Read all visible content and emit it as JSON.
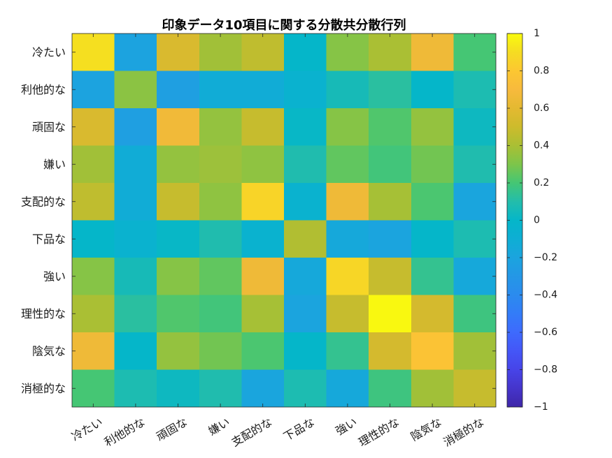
{
  "chart_data": {
    "type": "heatmap",
    "title": "印象データ10項目に関する分散共分散行列",
    "row_labels": [
      "冷たい",
      "利他的な",
      "頑固な",
      "嫌い",
      "支配的な",
      "下品な",
      "強い",
      "理性的な",
      "陰気な",
      "消極的な"
    ],
    "col_labels": [
      "冷たい",
      "利他的な",
      "頑固な",
      "嫌い",
      "支配的な",
      "下品な",
      "強い",
      "理性的な",
      "陰気な",
      "消極的な"
    ],
    "values": [
      [
        0.91,
        -0.21,
        0.55,
        0.38,
        0.46,
        0.0,
        0.32,
        0.4,
        0.66,
        0.2
      ],
      [
        -0.21,
        0.33,
        -0.24,
        -0.12,
        -0.12,
        -0.05,
        0.06,
        0.12,
        0.0,
        0.08
      ],
      [
        0.55,
        -0.24,
        0.67,
        0.35,
        0.48,
        0.01,
        0.32,
        0.22,
        0.35,
        0.03
      ],
      [
        0.38,
        -0.12,
        0.35,
        0.37,
        0.34,
        0.09,
        0.25,
        0.19,
        0.28,
        0.09
      ],
      [
        0.46,
        -0.12,
        0.48,
        0.34,
        0.86,
        -0.05,
        0.66,
        0.39,
        0.21,
        -0.19
      ],
      [
        0.0,
        -0.05,
        0.01,
        0.09,
        -0.05,
        0.42,
        -0.16,
        -0.2,
        0.0,
        0.08
      ],
      [
        0.32,
        0.06,
        0.32,
        0.25,
        0.66,
        -0.16,
        0.87,
        0.48,
        0.15,
        -0.16
      ],
      [
        0.4,
        0.12,
        0.22,
        0.19,
        0.39,
        -0.2,
        0.48,
        0.99,
        0.53,
        0.18
      ],
      [
        0.66,
        0.0,
        0.35,
        0.28,
        0.21,
        0.0,
        0.15,
        0.53,
        0.77,
        0.38
      ],
      [
        0.2,
        0.08,
        0.03,
        0.09,
        -0.19,
        0.08,
        -0.16,
        0.18,
        0.38,
        0.48
      ]
    ],
    "clim": [
      -1,
      1
    ],
    "grid": false,
    "colorbar": {
      "location": "right",
      "ticks": [
        1,
        0.8,
        0.6,
        0.4,
        0.2,
        0,
        -0.2,
        -0.4,
        -0.6,
        -0.8,
        -1
      ],
      "tick_labels": [
        "1",
        "0.8",
        "0.6",
        "0.4",
        "0.2",
        "0",
        "−0.2",
        "−0.4",
        "−0.6",
        "−0.8",
        "−1"
      ]
    },
    "colormap": [
      "#3e26a8",
      "#4535cb",
      "#4744e8",
      "#4456f7",
      "#3e6afd",
      "#337cf8",
      "#2b8bee",
      "#2497e6",
      "#1ba4de",
      "#0eaed4",
      "#05b6c9",
      "#23bdab",
      "#45c674",
      "#7dc54a",
      "#aabf34",
      "#cdbb2c",
      "#e4b931",
      "#f7ba3d",
      "#fcc731",
      "#f5dc22",
      "#f9fb0e"
    ]
  }
}
